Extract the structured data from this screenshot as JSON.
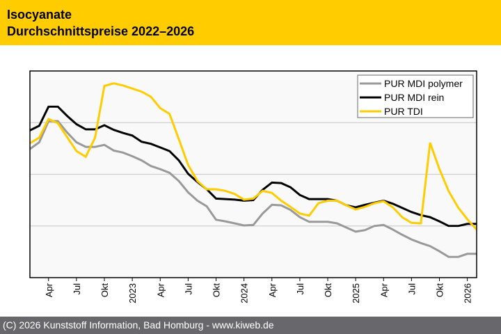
{
  "header": {
    "title_line1": "Isocyanate",
    "title_line2": "Durchschnittspreise 2022–2026",
    "background": "#ffcc00"
  },
  "footer": {
    "text": "(C) 2026 Kunststoff Information, Bad Homburg - www.kiweb.de"
  },
  "chart_data": {
    "type": "line",
    "title": "Isocyanate Durchschnittspreise 2022–2026",
    "xlabel": "",
    "ylabel": "",
    "y_tick_labels_shown": false,
    "ylim": [
      0,
      4
    ],
    "y_gridlines": [
      1,
      2,
      3
    ],
    "grid": true,
    "legend_position": "top-right",
    "x": [
      "2022-02",
      "2022-03",
      "2022-04",
      "2022-05",
      "2022-06",
      "2022-07",
      "2022-08",
      "2022-09",
      "2022-10",
      "2022-11",
      "2022-12",
      "2023-01",
      "2023-02",
      "2023-03",
      "2023-04",
      "2023-05",
      "2023-06",
      "2023-07",
      "2023-08",
      "2023-09",
      "2023-10",
      "2023-11",
      "2023-12",
      "2024-01",
      "2024-02",
      "2024-03",
      "2024-04",
      "2024-05",
      "2024-06",
      "2024-07",
      "2024-08",
      "2024-09",
      "2024-10",
      "2024-11",
      "2024-12",
      "2025-01",
      "2025-02",
      "2025-03",
      "2025-04",
      "2025-05",
      "2025-06",
      "2025-07",
      "2025-08",
      "2025-09",
      "2025-10",
      "2025-11",
      "2025-12",
      "2026-01",
      "2026-02"
    ],
    "x_ticks": [
      {
        "index": 2,
        "label": "Apr"
      },
      {
        "index": 5,
        "label": "Jul"
      },
      {
        "index": 8,
        "label": "Okt"
      },
      {
        "index": 11,
        "label": "2023"
      },
      {
        "index": 14,
        "label": "Apr"
      },
      {
        "index": 17,
        "label": "Jul"
      },
      {
        "index": 20,
        "label": "Okt"
      },
      {
        "index": 23,
        "label": "2024"
      },
      {
        "index": 26,
        "label": "Apr"
      },
      {
        "index": 29,
        "label": "Jul"
      },
      {
        "index": 32,
        "label": "Okt"
      },
      {
        "index": 35,
        "label": "2025"
      },
      {
        "index": 38,
        "label": "Apr"
      },
      {
        "index": 41,
        "label": "Jul"
      },
      {
        "index": 44,
        "label": "Okt"
      },
      {
        "index": 47,
        "label": "2026"
      }
    ],
    "series": [
      {
        "name": "PUR MDI polymer",
        "color": "#999999",
        "values": [
          2.49,
          2.62,
          3.03,
          3.03,
          2.81,
          2.62,
          2.53,
          2.53,
          2.57,
          2.46,
          2.42,
          2.35,
          2.27,
          2.16,
          2.1,
          2.03,
          1.87,
          1.65,
          1.49,
          1.38,
          1.12,
          1.09,
          1.05,
          1.01,
          1.02,
          1.24,
          1.41,
          1.4,
          1.31,
          1.17,
          1.08,
          1.08,
          1.08,
          1.05,
          0.97,
          0.89,
          0.92,
          1.0,
          1.02,
          0.93,
          0.83,
          0.74,
          0.67,
          0.61,
          0.51,
          0.4,
          0.4,
          0.46,
          0.46
        ]
      },
      {
        "name": "PUR MDI rein",
        "color": "#000000",
        "values": [
          2.85,
          2.94,
          3.31,
          3.31,
          3.13,
          2.97,
          2.87,
          2.87,
          2.95,
          2.86,
          2.8,
          2.75,
          2.63,
          2.59,
          2.52,
          2.45,
          2.27,
          2.01,
          1.85,
          1.71,
          1.53,
          1.52,
          1.51,
          1.49,
          1.5,
          1.7,
          1.84,
          1.83,
          1.75,
          1.6,
          1.52,
          1.52,
          1.52,
          1.49,
          1.4,
          1.36,
          1.41,
          1.45,
          1.49,
          1.43,
          1.35,
          1.27,
          1.21,
          1.17,
          1.09,
          1.0,
          1.0,
          1.04,
          1.04
        ]
      },
      {
        "name": "PUR TDI",
        "color": "#ffcc00",
        "values": [
          2.6,
          2.71,
          3.07,
          2.99,
          2.72,
          2.45,
          2.34,
          2.71,
          3.71,
          3.76,
          3.72,
          3.66,
          3.6,
          3.5,
          3.28,
          3.17,
          2.68,
          2.18,
          1.87,
          1.71,
          1.71,
          1.68,
          1.62,
          1.51,
          1.53,
          1.68,
          1.64,
          1.49,
          1.37,
          1.24,
          1.2,
          1.44,
          1.49,
          1.49,
          1.4,
          1.32,
          1.37,
          1.44,
          1.48,
          1.36,
          1.17,
          1.06,
          1.05,
          2.61,
          2.1,
          1.67,
          1.36,
          1.13,
          0.93
        ]
      }
    ]
  }
}
